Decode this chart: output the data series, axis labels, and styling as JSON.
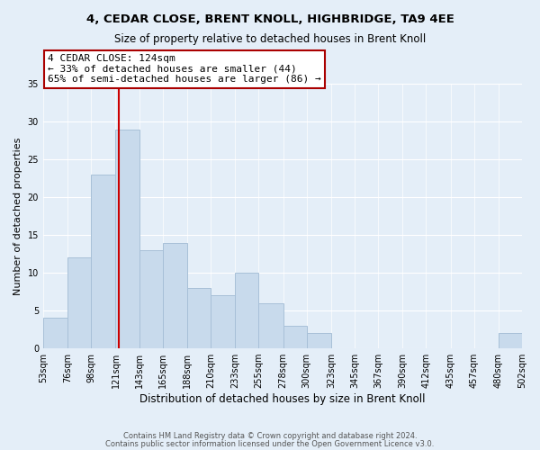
{
  "title": "4, CEDAR CLOSE, BRENT KNOLL, HIGHBRIDGE, TA9 4EE",
  "subtitle": "Size of property relative to detached houses in Brent Knoll",
  "xlabel": "Distribution of detached houses by size in Brent Knoll",
  "ylabel": "Number of detached properties",
  "bar_color": "#c8daec",
  "bar_edge_color": "#a8c0d8",
  "background_color": "#e4eef8",
  "grid_color": "#ffffff",
  "bin_labels": [
    "53sqm",
    "76sqm",
    "98sqm",
    "121sqm",
    "143sqm",
    "165sqm",
    "188sqm",
    "210sqm",
    "233sqm",
    "255sqm",
    "278sqm",
    "300sqm",
    "323sqm",
    "345sqm",
    "367sqm",
    "390sqm",
    "412sqm",
    "435sqm",
    "457sqm",
    "480sqm",
    "502sqm"
  ],
  "bin_edges": [
    53,
    76,
    98,
    121,
    143,
    165,
    188,
    210,
    233,
    255,
    278,
    300,
    323,
    345,
    367,
    390,
    412,
    435,
    457,
    480,
    502
  ],
  "bar_heights": [
    4,
    12,
    23,
    29,
    13,
    14,
    8,
    7,
    10,
    6,
    3,
    2,
    0,
    0,
    0,
    0,
    0,
    0,
    0,
    2
  ],
  "property_size": 124,
  "property_line_color": "#cc0000",
  "annotation_line1": "4 CEDAR CLOSE: 124sqm",
  "annotation_line2": "← 33% of detached houses are smaller (44)",
  "annotation_line3": "65% of semi-detached houses are larger (86) →",
  "annotation_box_color": "#ffffff",
  "annotation_box_edge": "#aa0000",
  "ylim": [
    0,
    35
  ],
  "yticks": [
    0,
    5,
    10,
    15,
    20,
    25,
    30,
    35
  ],
  "footer1": "Contains HM Land Registry data © Crown copyright and database right 2024.",
  "footer2": "Contains public sector information licensed under the Open Government Licence v3.0."
}
